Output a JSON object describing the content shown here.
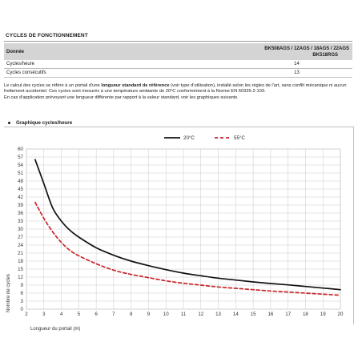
{
  "section_title": "CYCLES DE FONCTIONNEMENT",
  "table": {
    "header_label": "Donnée",
    "header_value_line1": "BK508AGS / 12AGS / 18AGS / 22AGS",
    "header_value_line2": "BK518RGS",
    "rows": [
      {
        "label": "Cycles/heure",
        "value": "14"
      },
      {
        "label": "Cycles consécutifs",
        "value": "13"
      }
    ]
  },
  "note": {
    "part1": "Le calcul des cycles se réfère à un portail d'une ",
    "bold": "longueur standard de référence",
    "part2": " (voir type d'utilisation), installé selon les règles de l'art, sans conflit mécanique ni aucun frottement accidentel. Ces cycles sont mesurés à une température ambiante de 20°C conformément à la Norme EN 60335-2-103.",
    "line3": "En cas d'application prévoyant une longueur différente par rapport à la valeur standard, voir les graphiques suivants."
  },
  "chart_heading": "Graphique cycles/heure",
  "chart_data": {
    "type": "line",
    "xlabel": "Longueur du portail (m)",
    "ylabel": "Nombre de cycles",
    "xlim": [
      2,
      20
    ],
    "ylim": [
      0,
      60
    ],
    "x_ticks": [
      2,
      3,
      4,
      5,
      6,
      7,
      8,
      9,
      10,
      11,
      12,
      13,
      14,
      15,
      16,
      17,
      18,
      19,
      20
    ],
    "y_ticks": [
      0,
      3,
      6,
      9,
      12,
      15,
      18,
      21,
      24,
      27,
      30,
      33,
      36,
      39,
      42,
      45,
      48,
      51,
      54,
      57,
      60
    ],
    "grid": true,
    "legend_position": "top",
    "x": [
      2.5,
      3,
      3.5,
      4,
      4.5,
      5,
      6,
      7,
      8,
      9,
      10,
      11,
      12,
      13,
      14,
      15,
      16,
      17,
      18,
      19,
      20
    ],
    "series": [
      {
        "name": "20°C",
        "color": "#111111",
        "dash": false,
        "values": [
          56,
          47,
          38,
          33,
          29.5,
          27,
          23,
          20.2,
          18,
          16.3,
          14.8,
          13.5,
          12.5,
          11.6,
          10.9,
          10.2,
          9.6,
          9.1,
          8.5,
          7.9,
          7.3
        ]
      },
      {
        "name": "55°C",
        "color": "#c8262c",
        "dash": true,
        "values": [
          40,
          34,
          29,
          25,
          22,
          20,
          17,
          14.6,
          13,
          11.8,
          10.6,
          9.7,
          9.0,
          8.3,
          7.8,
          7.3,
          6.8,
          6.4,
          6.0,
          5.6,
          5.2
        ]
      }
    ]
  }
}
